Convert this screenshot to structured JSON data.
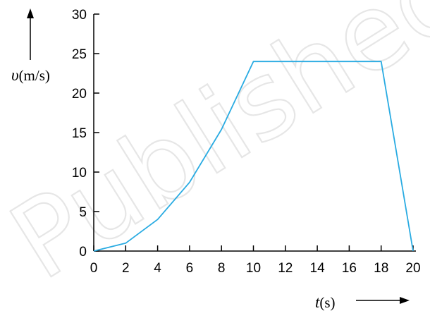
{
  "chart_data": {
    "type": "line",
    "xlabel": {
      "var": "t",
      "unit": "(s)"
    },
    "ylabel": {
      "var": "υ",
      "unit": "(m/s)"
    },
    "x_ticks": [
      0,
      2,
      4,
      6,
      8,
      10,
      12,
      14,
      16,
      18,
      20
    ],
    "y_ticks": [
      0,
      5,
      10,
      15,
      20,
      25,
      30
    ],
    "xlim": [
      0,
      20
    ],
    "ylim": [
      0,
      30
    ],
    "grid": false,
    "series": [
      {
        "color": "#29abe2",
        "x": [
          0,
          2,
          4,
          6,
          8,
          10,
          18,
          20
        ],
        "y": [
          0,
          1,
          4,
          8.7,
          15.4,
          24,
          24,
          0
        ]
      }
    ]
  },
  "watermark": "Published"
}
